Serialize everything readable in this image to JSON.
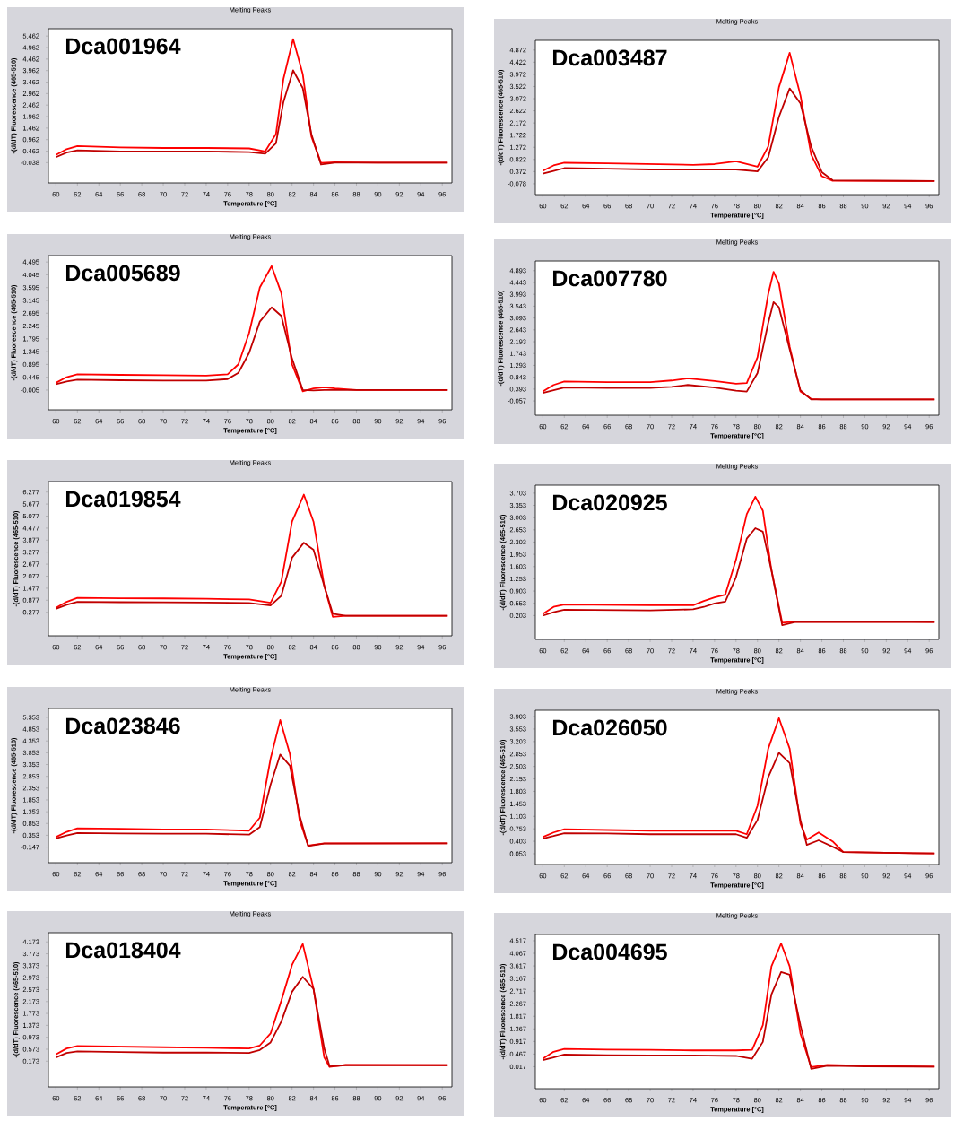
{
  "chart_data": [
    {
      "type": "line",
      "title": "Melting Peaks",
      "xlabel": "Temperature [°C]",
      "ylabel": "-(d/dT) Fluorescence (465-510)",
      "annotations": [
        "Dca001964"
      ],
      "xlim": [
        59.3,
        96.9
      ],
      "xticks": [
        60,
        62,
        64,
        66,
        68,
        70,
        72,
        74,
        76,
        78,
        80,
        82,
        84,
        86,
        88,
        90,
        92,
        94,
        96
      ],
      "ylim": [
        -0.92,
        5.78
      ],
      "yticks": [
        -0.038,
        0.462,
        0.962,
        1.462,
        1.962,
        2.462,
        2.962,
        3.462,
        3.962,
        4.462,
        4.962,
        5.462
      ],
      "x": [
        60,
        61,
        62,
        66,
        70,
        74,
        78,
        79.5,
        80.5,
        81.2,
        82.1,
        83,
        83.8,
        84.7,
        86,
        90,
        96.5
      ],
      "series": [
        {
          "color": "#ff0000",
          "values": [
            0.3,
            0.55,
            0.68,
            0.62,
            0.6,
            0.6,
            0.58,
            0.45,
            1.2,
            3.6,
            5.33,
            3.8,
            1.1,
            -0.05,
            -0.02,
            -0.04,
            -0.04
          ]
        },
        {
          "color": "#c00000",
          "values": [
            0.2,
            0.4,
            0.5,
            0.45,
            0.45,
            0.45,
            0.42,
            0.35,
            0.8,
            2.6,
            3.97,
            3.2,
            1.2,
            -0.12,
            -0.04,
            -0.04,
            -0.04
          ]
        }
      ]
    },
    {
      "type": "line",
      "title": "Melting Peaks",
      "xlabel": "Temperature [°C]",
      "ylabel": "-(d/dT) Fluorescence (465-510)",
      "annotations": [
        "Dca003487"
      ],
      "xlim": [
        59.3,
        96.9
      ],
      "xticks": [
        60,
        62,
        64,
        66,
        68,
        70,
        72,
        74,
        76,
        78,
        80,
        82,
        84,
        86,
        88,
        90,
        92,
        94,
        96
      ],
      "ylim": [
        -0.48,
        5.23
      ],
      "yticks": [
        -0.078,
        0.372,
        0.822,
        1.272,
        1.722,
        2.172,
        2.622,
        3.072,
        3.522,
        3.972,
        4.422,
        4.872
      ],
      "x": [
        60,
        61,
        62,
        66,
        70,
        74,
        76,
        78,
        80,
        81,
        82,
        83,
        84,
        85,
        86,
        87,
        96.5
      ],
      "series": [
        {
          "color": "#ff0000",
          "values": [
            0.4,
            0.6,
            0.7,
            0.68,
            0.65,
            0.62,
            0.65,
            0.75,
            0.55,
            1.3,
            3.5,
            4.77,
            3.2,
            1.0,
            0.2,
            0.03,
            0.02
          ]
        },
        {
          "color": "#c00000",
          "values": [
            0.3,
            0.4,
            0.5,
            0.48,
            0.45,
            0.45,
            0.45,
            0.45,
            0.38,
            0.9,
            2.4,
            3.45,
            2.9,
            1.3,
            0.35,
            0.05,
            0.02
          ]
        }
      ]
    },
    {
      "type": "line",
      "title": "Melting Peaks",
      "xlabel": "Temperature [°C]",
      "ylabel": "-(d/dT) Fluorescence (465-510)",
      "annotations": [
        "Dca005689"
      ],
      "xlim": [
        59.3,
        96.9
      ],
      "xticks": [
        60,
        62,
        64,
        66,
        68,
        70,
        72,
        74,
        76,
        78,
        80,
        82,
        84,
        86,
        88,
        90,
        92,
        94,
        96
      ],
      "ylim": [
        -0.7,
        4.72
      ],
      "yticks": [
        -0.005,
        0.445,
        0.895,
        1.345,
        1.795,
        2.245,
        2.695,
        3.145,
        3.595,
        4.045,
        4.495
      ],
      "x": [
        60,
        61,
        62,
        66,
        70,
        74,
        76,
        77,
        78,
        79,
        80.1,
        81,
        82,
        83,
        84,
        85,
        86,
        88,
        96.5
      ],
      "series": [
        {
          "color": "#ff0000",
          "values": [
            0.25,
            0.45,
            0.55,
            0.53,
            0.52,
            0.5,
            0.55,
            0.9,
            2.0,
            3.6,
            4.35,
            3.4,
            0.9,
            -0.05,
            0.05,
            0.09,
            0.05,
            0.0,
            0.0
          ]
        },
        {
          "color": "#c00000",
          "values": [
            0.2,
            0.3,
            0.36,
            0.34,
            0.33,
            0.33,
            0.38,
            0.6,
            1.3,
            2.4,
            2.9,
            2.6,
            1.1,
            0.0,
            -0.02,
            0.0,
            0.0,
            0.0,
            0.0
          ]
        }
      ]
    },
    {
      "type": "line",
      "title": "Melting Peaks",
      "xlabel": "Temperature [°C]",
      "ylabel": "-(d/dT) Fluorescence (465-510)",
      "annotations": [
        "Dca007780"
      ],
      "xlim": [
        59.3,
        96.9
      ],
      "xticks": [
        60,
        62,
        64,
        66,
        68,
        70,
        72,
        74,
        76,
        78,
        80,
        82,
        84,
        86,
        88,
        90,
        92,
        94,
        96
      ],
      "ylim": [
        -0.6,
        5.26
      ],
      "yticks": [
        -0.057,
        0.393,
        0.843,
        1.293,
        1.743,
        2.193,
        2.643,
        3.093,
        3.543,
        3.993,
        4.443,
        4.893
      ],
      "x": [
        60,
        61,
        62,
        66,
        70,
        72,
        73.5,
        76,
        78,
        79,
        80,
        81,
        81.5,
        82,
        83,
        84,
        85,
        86,
        96.5
      ],
      "series": [
        {
          "color": "#ff0000",
          "values": [
            0.3,
            0.55,
            0.68,
            0.66,
            0.66,
            0.72,
            0.8,
            0.7,
            0.6,
            0.62,
            1.6,
            4.0,
            4.85,
            4.4,
            2.0,
            0.3,
            0.02,
            0.0,
            0.0
          ]
        },
        {
          "color": "#c00000",
          "values": [
            0.25,
            0.35,
            0.45,
            0.44,
            0.44,
            0.48,
            0.55,
            0.45,
            0.33,
            0.3,
            1.0,
            2.9,
            3.7,
            3.5,
            1.9,
            0.35,
            0.0,
            0.0,
            0.0
          ]
        }
      ]
    },
    {
      "type": "line",
      "title": "Melting Peaks",
      "xlabel": "Temperature [°C]",
      "ylabel": "-(d/dT) Fluorescence (465-510)",
      "annotations": [
        "Dca019854"
      ],
      "xlim": [
        59.3,
        96.9
      ],
      "xticks": [
        60,
        62,
        64,
        66,
        68,
        70,
        72,
        74,
        76,
        78,
        80,
        82,
        84,
        86,
        88,
        90,
        92,
        94,
        96
      ],
      "ylim": [
        -0.9,
        6.8
      ],
      "yticks": [
        0.277,
        0.877,
        1.477,
        2.077,
        2.677,
        3.277,
        3.877,
        4.477,
        5.077,
        5.677,
        6.277
      ],
      "x": [
        60,
        61,
        62,
        66,
        70,
        74,
        78,
        80,
        81,
        82,
        83.1,
        84,
        85,
        85.8,
        87,
        96.5
      ],
      "series": [
        {
          "color": "#ff0000",
          "values": [
            0.5,
            0.8,
            1.0,
            0.98,
            0.97,
            0.95,
            0.92,
            0.75,
            1.8,
            4.8,
            6.15,
            4.8,
            1.6,
            0.05,
            0.1,
            0.1
          ]
        },
        {
          "color": "#c00000",
          "values": [
            0.45,
            0.65,
            0.8,
            0.78,
            0.77,
            0.76,
            0.74,
            0.62,
            1.1,
            3.0,
            3.75,
            3.4,
            1.6,
            0.2,
            0.1,
            0.1
          ]
        }
      ]
    },
    {
      "type": "line",
      "title": "Melting Peaks",
      "xlabel": "Temperature [°C]",
      "ylabel": "-(d/dT) Fluorescence (465-510)",
      "annotations": [
        "Dca020925"
      ],
      "xlim": [
        59.3,
        96.9
      ],
      "xticks": [
        60,
        62,
        64,
        66,
        68,
        70,
        72,
        74,
        76,
        78,
        80,
        82,
        84,
        86,
        88,
        90,
        92,
        94,
        96
      ],
      "ylim": [
        -0.48,
        3.93
      ],
      "yticks": [
        0.203,
        0.553,
        0.903,
        1.253,
        1.603,
        1.953,
        2.303,
        2.653,
        3.003,
        3.353,
        3.703
      ],
      "x": [
        60,
        61,
        62,
        66,
        70,
        74,
        75,
        76,
        77,
        78,
        79,
        79.8,
        80.5,
        81.3,
        82.3,
        83.5,
        96.5
      ],
      "series": [
        {
          "color": "#ff0000",
          "values": [
            0.25,
            0.45,
            0.52,
            0.51,
            0.5,
            0.5,
            0.62,
            0.72,
            0.8,
            1.8,
            3.1,
            3.6,
            3.2,
            1.5,
            0.0,
            0.03,
            0.02
          ]
        },
        {
          "color": "#c00000",
          "values": [
            0.2,
            0.3,
            0.37,
            0.36,
            0.35,
            0.38,
            0.45,
            0.55,
            0.6,
            1.3,
            2.4,
            2.7,
            2.6,
            1.5,
            -0.07,
            0.02,
            0.02
          ]
        }
      ]
    },
    {
      "type": "line",
      "title": "Melting Peaks",
      "xlabel": "Temperature [°C]",
      "ylabel": "-(d/dT) Fluorescence (465-510)",
      "annotations": [
        "Dca023846"
      ],
      "xlim": [
        59.3,
        96.9
      ],
      "xticks": [
        60,
        62,
        64,
        66,
        68,
        70,
        72,
        74,
        76,
        78,
        80,
        82,
        84,
        86,
        88,
        90,
        92,
        94,
        96
      ],
      "ylim": [
        -0.81,
        5.73
      ],
      "yticks": [
        -0.147,
        0.353,
        0.853,
        1.353,
        1.853,
        2.353,
        2.853,
        3.353,
        3.853,
        4.353,
        4.853,
        5.353
      ],
      "x": [
        60,
        61,
        62,
        66,
        70,
        74,
        78,
        79,
        80,
        80.9,
        81.8,
        82.7,
        83.5,
        85,
        96.5
      ],
      "series": [
        {
          "color": "#ff0000",
          "values": [
            0.28,
            0.5,
            0.65,
            0.63,
            0.6,
            0.6,
            0.55,
            1.1,
            3.6,
            5.24,
            3.8,
            1.0,
            -0.08,
            0.01,
            0.01
          ]
        },
        {
          "color": "#c00000",
          "values": [
            0.22,
            0.35,
            0.45,
            0.43,
            0.42,
            0.42,
            0.38,
            0.7,
            2.5,
            3.78,
            3.3,
            1.2,
            -0.1,
            0.0,
            0.01
          ]
        }
      ]
    },
    {
      "type": "line",
      "title": "Melting Peaks",
      "xlabel": "Temperature [°C]",
      "ylabel": "-(d/dT) Fluorescence (465-510)",
      "annotations": [
        "Dca026050"
      ],
      "xlim": [
        59.3,
        96.9
      ],
      "xticks": [
        60,
        62,
        64,
        66,
        68,
        70,
        72,
        74,
        76,
        78,
        80,
        82,
        84,
        86,
        88,
        90,
        92,
        94,
        96
      ],
      "ylim": [
        -0.25,
        4.08
      ],
      "yticks": [
        0.053,
        0.403,
        0.753,
        1.103,
        1.453,
        1.803,
        2.153,
        2.503,
        2.853,
        3.203,
        3.553,
        3.903
      ],
      "x": [
        60,
        61,
        62,
        66,
        70,
        74,
        78,
        79,
        80,
        81,
        82,
        83,
        84,
        84.6,
        85.7,
        87,
        88,
        96.5
      ],
      "series": [
        {
          "color": "#ff0000",
          "values": [
            0.52,
            0.65,
            0.74,
            0.72,
            0.7,
            0.7,
            0.7,
            0.6,
            1.4,
            3.0,
            3.86,
            3.0,
            0.9,
            0.45,
            0.65,
            0.4,
            0.1,
            0.06
          ]
        },
        {
          "color": "#c00000",
          "values": [
            0.48,
            0.55,
            0.63,
            0.62,
            0.6,
            0.6,
            0.6,
            0.5,
            1.0,
            2.2,
            2.89,
            2.6,
            1.0,
            0.3,
            0.43,
            0.25,
            0.1,
            0.06
          ]
        }
      ]
    },
    {
      "type": "line",
      "title": "Melting Peaks",
      "xlabel": "Temperature [°C]",
      "ylabel": "-(d/dT) Fluorescence (465-510)",
      "annotations": [
        "Dca018404"
      ],
      "xlim": [
        59.3,
        96.9
      ],
      "xticks": [
        60,
        62,
        64,
        66,
        68,
        70,
        72,
        74,
        76,
        78,
        80,
        82,
        84,
        86,
        88,
        90,
        92,
        94,
        96
      ],
      "ylim": [
        -0.69,
        4.48
      ],
      "yticks": [
        0.173,
        0.573,
        0.973,
        1.373,
        1.773,
        2.173,
        2.573,
        2.973,
        3.373,
        3.773,
        4.173
      ],
      "x": [
        60,
        61,
        62,
        66,
        70,
        74,
        78,
        79,
        80,
        81,
        82,
        83,
        84,
        85,
        85.5,
        87,
        96.5
      ],
      "series": [
        {
          "color": "#ff0000",
          "values": [
            0.4,
            0.6,
            0.68,
            0.66,
            0.64,
            0.62,
            0.6,
            0.7,
            1.1,
            2.2,
            3.4,
            4.1,
            2.6,
            0.3,
            -0.02,
            0.05,
            0.04
          ]
        },
        {
          "color": "#c00000",
          "values": [
            0.3,
            0.45,
            0.5,
            0.48,
            0.46,
            0.46,
            0.45,
            0.55,
            0.8,
            1.5,
            2.5,
            3.0,
            2.6,
            0.6,
            0.0,
            0.04,
            0.04
          ]
        }
      ]
    },
    {
      "type": "line",
      "title": "Melting Peaks",
      "xlabel": "Temperature [°C]",
      "ylabel": "-(d/dT) Fluorescence (465-510)",
      "annotations": [
        "Dca004695"
      ],
      "xlim": [
        59.3,
        96.9
      ],
      "xticks": [
        60,
        62,
        64,
        66,
        68,
        70,
        72,
        74,
        76,
        78,
        80,
        82,
        84,
        86,
        88,
        90,
        92,
        94,
        96
      ],
      "ylim": [
        -0.77,
        4.74
      ],
      "yticks": [
        0.017,
        0.467,
        0.917,
        1.367,
        1.817,
        2.267,
        2.717,
        3.167,
        3.617,
        4.067,
        4.517
      ],
      "x": [
        60,
        61,
        62,
        66,
        70,
        74,
        78,
        79.5,
        80.5,
        81.3,
        82.2,
        83,
        84,
        85,
        86.5,
        90,
        96.5
      ],
      "series": [
        {
          "color": "#ff0000",
          "values": [
            0.3,
            0.55,
            0.65,
            0.63,
            0.62,
            0.6,
            0.6,
            0.62,
            1.5,
            3.6,
            4.42,
            3.6,
            1.2,
            0.0,
            0.08,
            0.05,
            0.02
          ]
        },
        {
          "color": "#c00000",
          "values": [
            0.25,
            0.35,
            0.45,
            0.43,
            0.42,
            0.42,
            0.4,
            0.3,
            0.9,
            2.6,
            3.4,
            3.3,
            1.5,
            -0.06,
            0.05,
            0.03,
            0.02
          ]
        }
      ]
    }
  ]
}
